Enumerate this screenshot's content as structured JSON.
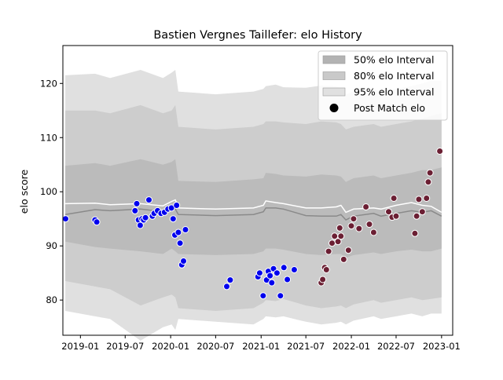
{
  "chart_data": {
    "type": "scatter",
    "title": "Bastien Vergnes Taillefer: elo History",
    "xlabel": "",
    "ylabel": "elo score",
    "xlim": [
      "2018-10-22",
      "2023-02-15"
    ],
    "ylim": [
      73.5,
      127
    ],
    "x_ticks": [
      {
        "date": "2019-01-01",
        "label": "2019-01"
      },
      {
        "date": "2019-07-01",
        "label": "2019-07"
      },
      {
        "date": "2020-01-01",
        "label": "2020-01"
      },
      {
        "date": "2020-07-01",
        "label": "2020-07"
      },
      {
        "date": "2021-01-01",
        "label": "2021-01"
      },
      {
        "date": "2021-07-01",
        "label": "2021-07"
      },
      {
        "date": "2022-01-01",
        "label": "2022-01"
      },
      {
        "date": "2022-07-01",
        "label": "2022-07"
      },
      {
        "date": "2023-01-01",
        "label": "2023-01"
      }
    ],
    "y_ticks": [
      80,
      90,
      100,
      110,
      120
    ],
    "grid": false,
    "legend": {
      "placement": "top-right",
      "entries": [
        {
          "label": "50% elo Interval",
          "color": "#b3b3b3",
          "kind": "patch"
        },
        {
          "label": "80% elo Interval",
          "color": "#c9c9c9",
          "kind": "patch"
        },
        {
          "label": "95% elo Interval",
          "color": "#e0e0e0",
          "kind": "patch"
        },
        {
          "label": "Post Match elo",
          "color": "#000000",
          "kind": "marker"
        }
      ]
    },
    "colors": {
      "band95": "#e0e0e0",
      "band80": "#cdcdcd",
      "band50": "#bbbbbb",
      "mean_line": "#8a8a8a",
      "white_line": "#ffffff",
      "series_early": "#0000ee",
      "series_late": "#6b1f33"
    },
    "bands": {
      "x": [
        "2018-11-01",
        "2019-03-01",
        "2019-05-01",
        "2019-09-01",
        "2019-12-01",
        "2020-01-05",
        "2020-01-20",
        "2020-02-01",
        "2020-07-01",
        "2020-12-01",
        "2021-01-10",
        "2021-01-20",
        "2021-03-01",
        "2021-04-01",
        "2021-07-01",
        "2021-09-01",
        "2021-11-01",
        "2021-11-20",
        "2021-12-10",
        "2022-01-10",
        "2022-04-01",
        "2022-05-01",
        "2022-07-01",
        "2022-09-01",
        "2022-10-15",
        "2022-11-20",
        "2023-01-01"
      ],
      "p95_hi": [
        121.5,
        121.8,
        121.0,
        122.5,
        121.0,
        122.0,
        122.5,
        118.5,
        118.0,
        118.5,
        119.0,
        119.5,
        119.8,
        119.3,
        119.2,
        119.6,
        119.5,
        119.0,
        118.0,
        118.5,
        119.0,
        118.5,
        119.0,
        119.5,
        120.0,
        120.5,
        120.5
      ],
      "p80_hi": [
        115.0,
        115.0,
        114.5,
        116.0,
        114.5,
        115.0,
        116.0,
        112.0,
        111.5,
        112.0,
        112.5,
        113.0,
        113.0,
        112.8,
        112.5,
        113.0,
        112.8,
        112.5,
        111.5,
        112.0,
        112.5,
        112.0,
        112.5,
        113.0,
        113.5,
        114.0,
        114.5
      ],
      "p50_hi": [
        104.8,
        105.3,
        104.8,
        106.0,
        105.0,
        105.5,
        106.0,
        102.0,
        101.8,
        102.3,
        102.5,
        103.5,
        103.3,
        103.0,
        102.8,
        103.2,
        103.0,
        102.8,
        101.8,
        102.5,
        103.0,
        102.5,
        103.0,
        103.5,
        104.0,
        104.0,
        104.5
      ],
      "mean": [
        95.8,
        96.7,
        96.5,
        96.8,
        96.3,
        97.0,
        96.8,
        95.8,
        95.6,
        95.8,
        96.3,
        97.0,
        97.0,
        96.8,
        95.6,
        95.5,
        95.5,
        95.8,
        94.8,
        95.5,
        96.0,
        95.5,
        96.0,
        96.5,
        96.2,
        96.5,
        95.5
      ],
      "white": [
        97.8,
        97.9,
        97.6,
        97.8,
        97.4,
        98.2,
        98.5,
        97.0,
        96.8,
        97.0,
        97.5,
        98.3,
        98.0,
        97.8,
        97.0,
        97.0,
        97.2,
        97.5,
        96.2,
        96.8,
        97.0,
        96.8,
        97.5,
        98.0,
        97.5,
        97.3,
        96.2
      ],
      "p50_lo": [
        90.8,
        89.8,
        89.5,
        89.0,
        88.5,
        89.5,
        89.0,
        88.5,
        88.3,
        88.5,
        89.0,
        89.5,
        89.5,
        89.3,
        88.5,
        88.3,
        88.5,
        88.5,
        87.8,
        88.3,
        88.8,
        88.5,
        89.0,
        89.3,
        89.0,
        89.0,
        89.5
      ],
      "p80_lo": [
        83.5,
        82.5,
        82.0,
        79.0,
        80.5,
        81.0,
        80.5,
        78.5,
        78.0,
        78.5,
        79.5,
        80.0,
        79.8,
        80.2,
        79.0,
        78.5,
        78.8,
        79.0,
        78.5,
        79.2,
        80.0,
        79.5,
        80.0,
        80.5,
        80.0,
        80.2,
        80.5
      ],
      "p95_lo": [
        78.0,
        77.0,
        76.5,
        72.5,
        75.0,
        75.5,
        74.5,
        76.5,
        76.0,
        75.5,
        76.5,
        77.0,
        76.8,
        77.0,
        76.0,
        75.5,
        75.8,
        76.0,
        75.5,
        76.2,
        77.0,
        76.5,
        77.0,
        77.5,
        77.0,
        77.5,
        77.5
      ]
    },
    "series": [
      {
        "key": "early",
        "x": [
          "2018-11-02",
          "2019-03-01",
          "2019-03-08",
          "2019-08-10",
          "2019-08-17",
          "2019-08-24",
          "2019-08-31",
          "2019-09-07",
          "2019-09-14",
          "2019-09-21",
          "2019-10-05",
          "2019-10-19",
          "2019-10-26",
          "2019-11-09",
          "2019-11-23",
          "2019-12-07",
          "2019-12-21",
          "2020-01-04",
          "2020-01-11",
          "2020-01-18",
          "2020-01-25",
          "2020-02-01",
          "2020-02-08",
          "2020-02-15",
          "2020-02-22",
          "2020-03-01",
          "2020-08-15",
          "2020-08-29",
          "2020-12-19",
          "2020-12-26",
          "2021-01-09",
          "2021-01-23",
          "2021-01-30",
          "2021-02-06",
          "2021-02-13",
          "2021-02-20",
          "2021-03-06",
          "2021-03-20",
          "2021-04-03",
          "2021-04-17",
          "2021-05-15"
        ],
        "y": [
          95.0,
          94.8,
          94.4,
          96.5,
          97.8,
          94.8,
          93.8,
          95.0,
          94.8,
          95.2,
          98.5,
          95.5,
          96.0,
          96.5,
          96.0,
          96.2,
          96.8,
          97.0,
          95.0,
          92.0,
          97.5,
          92.5,
          90.5,
          86.5,
          87.2,
          93.0,
          82.5,
          83.7,
          84.3,
          85.0,
          80.8,
          83.7,
          85.3,
          84.5,
          83.2,
          85.8,
          85.0,
          80.8,
          86.0,
          83.8,
          85.6
        ]
      },
      {
        "key": "late",
        "x": [
          "2021-09-01",
          "2021-09-07",
          "2021-09-15",
          "2021-09-22",
          "2021-10-01",
          "2021-10-15",
          "2021-10-25",
          "2021-11-08",
          "2021-11-15",
          "2021-11-20",
          "2021-12-01",
          "2021-12-20",
          "2022-01-01",
          "2022-01-10",
          "2022-02-01",
          "2022-03-01",
          "2022-03-15",
          "2022-04-01",
          "2022-06-01",
          "2022-06-15",
          "2022-06-22",
          "2022-07-01",
          "2022-09-15",
          "2022-09-22",
          "2022-10-01",
          "2022-10-15",
          "2022-11-01",
          "2022-11-08",
          "2022-11-15",
          "2022-12-25"
        ],
        "y": [
          83.2,
          83.8,
          86.0,
          85.6,
          89.0,
          90.5,
          91.8,
          90.8,
          93.3,
          91.8,
          87.5,
          89.2,
          93.7,
          95.0,
          93.2,
          97.2,
          94.0,
          92.5,
          96.3,
          95.3,
          98.8,
          95.5,
          92.3,
          95.5,
          98.6,
          96.3,
          98.8,
          101.8,
          103.5,
          107.5
        ]
      }
    ]
  }
}
